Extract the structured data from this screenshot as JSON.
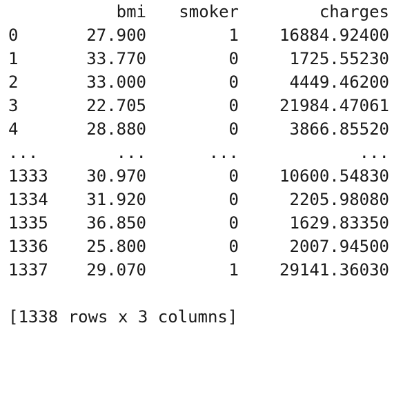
{
  "table": {
    "columns": [
      "bmi",
      "smoker",
      "charges"
    ],
    "rows": [
      {
        "index": "0",
        "bmi": "27.900",
        "smoker": "1",
        "charges": "16884.92400"
      },
      {
        "index": "1",
        "bmi": "33.770",
        "smoker": "0",
        "charges": "1725.55230"
      },
      {
        "index": "2",
        "bmi": "33.000",
        "smoker": "0",
        "charges": "4449.46200"
      },
      {
        "index": "3",
        "bmi": "22.705",
        "smoker": "0",
        "charges": "21984.47061"
      },
      {
        "index": "4",
        "bmi": "28.880",
        "smoker": "0",
        "charges": "3866.85520"
      },
      {
        "index": "...",
        "bmi": "...",
        "smoker": "...",
        "charges": "..."
      },
      {
        "index": "1333",
        "bmi": "30.970",
        "smoker": "0",
        "charges": "10600.54830"
      },
      {
        "index": "1334",
        "bmi": "31.920",
        "smoker": "0",
        "charges": "2205.98080"
      },
      {
        "index": "1335",
        "bmi": "36.850",
        "smoker": "0",
        "charges": "1629.83350"
      },
      {
        "index": "1336",
        "bmi": "25.800",
        "smoker": "0",
        "charges": "2007.94500"
      },
      {
        "index": "1337",
        "bmi": "29.070",
        "smoker": "1",
        "charges": "29141.36030"
      }
    ],
    "summary": "[1338 rows x 3 columns]"
  }
}
